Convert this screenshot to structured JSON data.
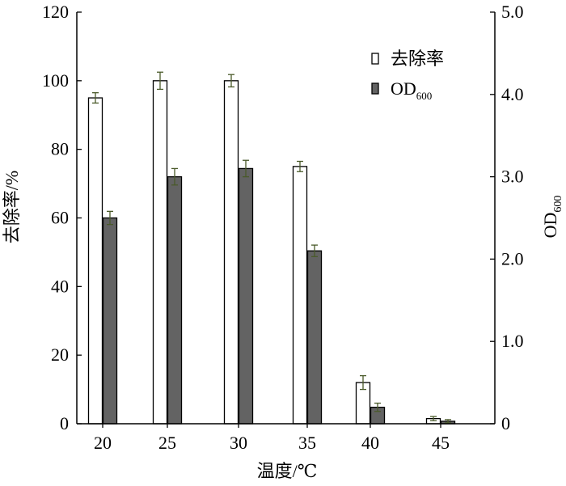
{
  "chart_data": {
    "type": "bar",
    "categories": [
      "20",
      "25",
      "30",
      "35",
      "40",
      "45"
    ],
    "series": [
      {
        "name": "去除率",
        "axis": "left",
        "fill": "#ffffff",
        "values": [
          95,
          100,
          100,
          75,
          12,
          1.5
        ],
        "errors": [
          1.5,
          2.5,
          1.8,
          1.5,
          2.0,
          0.6
        ]
      },
      {
        "name": "OD",
        "name_sub": "600",
        "axis": "right",
        "fill": "#636363",
        "values": [
          2.5,
          3.0,
          3.1,
          2.1,
          0.2,
          0.03
        ],
        "errors": [
          0.08,
          0.1,
          0.1,
          0.07,
          0.05,
          0.02
        ]
      }
    ],
    "xlabel": "温度/℃",
    "ylabel_left": "去除率/%",
    "ylabel_right": {
      "main": "OD",
      "sub": "600"
    },
    "ylim_left": [
      0,
      120
    ],
    "ylim_right": [
      0,
      5.0
    ],
    "left_ticks": [
      "0",
      "20",
      "40",
      "60",
      "80",
      "100",
      "120"
    ],
    "right_ticks": [
      "0",
      "1.0",
      "2.0",
      "3.0",
      "4.0",
      "5.0"
    ],
    "legend_position": "top-right",
    "grid": false,
    "error_bar_color": "#4a5a2a"
  }
}
